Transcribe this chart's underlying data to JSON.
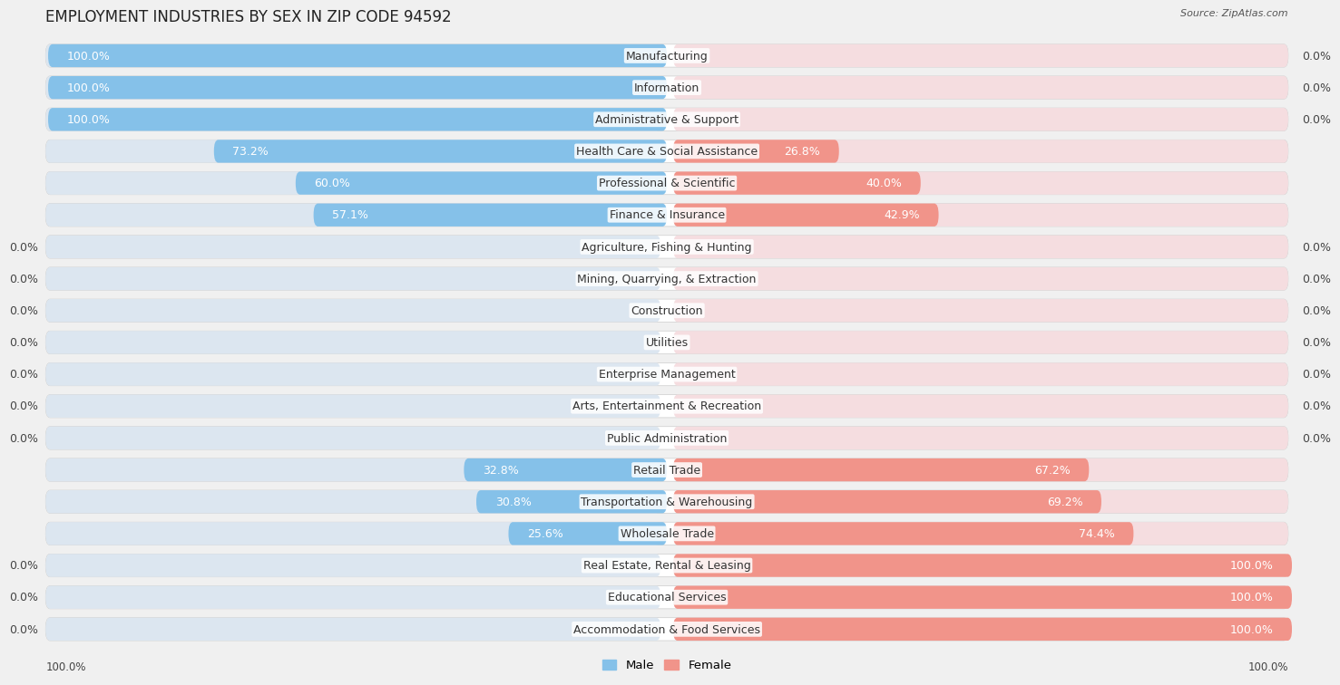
{
  "title": "EMPLOYMENT INDUSTRIES BY SEX IN ZIP CODE 94592",
  "source": "Source: ZipAtlas.com",
  "categories": [
    "Manufacturing",
    "Information",
    "Administrative & Support",
    "Health Care & Social Assistance",
    "Professional & Scientific",
    "Finance & Insurance",
    "Agriculture, Fishing & Hunting",
    "Mining, Quarrying, & Extraction",
    "Construction",
    "Utilities",
    "Enterprise Management",
    "Arts, Entertainment & Recreation",
    "Public Administration",
    "Retail Trade",
    "Transportation & Warehousing",
    "Wholesale Trade",
    "Real Estate, Rental & Leasing",
    "Educational Services",
    "Accommodation & Food Services"
  ],
  "male": [
    100.0,
    100.0,
    100.0,
    73.2,
    60.0,
    57.1,
    0.0,
    0.0,
    0.0,
    0.0,
    0.0,
    0.0,
    0.0,
    32.8,
    30.8,
    25.6,
    0.0,
    0.0,
    0.0
  ],
  "female": [
    0.0,
    0.0,
    0.0,
    26.8,
    40.0,
    42.9,
    0.0,
    0.0,
    0.0,
    0.0,
    0.0,
    0.0,
    0.0,
    67.2,
    69.2,
    74.4,
    100.0,
    100.0,
    100.0
  ],
  "male_color": "#85C1E9",
  "female_color": "#F1948A",
  "background_color": "#f0f0f0",
  "bar_bg_color": "#dce6f0",
  "bar_bg_color_right": "#f5dde0",
  "row_bg_color": "#e8e8e8",
  "title_fontsize": 12,
  "label_fontsize": 9,
  "category_fontsize": 9,
  "source_fontsize": 8
}
